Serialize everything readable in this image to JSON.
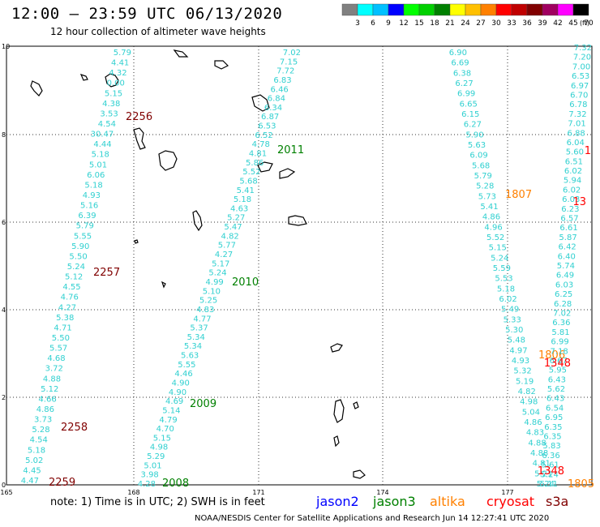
{
  "header": {
    "title": "12:00 – 23:59 UTC 06/13/2020",
    "subtitle": "12 hour collection of altimeter wave heights"
  },
  "legend": {
    "colors": [
      "#808080",
      "#00ffff",
      "#00c0ff",
      "#0000ff",
      "#00ff00",
      "#00d000",
      "#008000",
      "#ffff00",
      "#ffc000",
      "#ff8000",
      "#ff0000",
      "#c00000",
      "#800000",
      "#a00060",
      "#ff00ff",
      "#000000"
    ],
    "labels": [
      "3",
      "6",
      "9",
      "12",
      "15",
      "18",
      "21",
      "24",
      "27",
      "30",
      "33",
      "36",
      "39",
      "42",
      "45",
      "70"
    ],
    "unit": "(ft)"
  },
  "axes": {
    "x_ticks": [
      "165",
      "168",
      "171",
      "174",
      "177"
    ],
    "y_ticks": [
      "0",
      "2",
      "4",
      "6",
      "8",
      "10"
    ]
  },
  "tracks": [
    {
      "id": "track-left",
      "values": [
        "5.79",
        "4.41",
        "4.32",
        "0.00",
        "5.15",
        "4.38",
        "3.53",
        "4.54",
        "30.47",
        "4.44",
        "5.18",
        "5.01",
        "6.06",
        "5.18",
        "4.93",
        "5.16",
        "6.39",
        "5.79",
        "5.55",
        "5.90",
        "5.50",
        "5.24",
        "5.12",
        "4.55",
        "4.76",
        "4.27",
        "5.38",
        "4.71",
        "5.50",
        "5.57",
        "4.68",
        "3.72",
        "4.88",
        "5.12",
        "4.66",
        "4.86",
        "3.73",
        "5.28",
        "4.54",
        "5.18",
        "5.02",
        "4.45",
        "4.47"
      ],
      "time_labels": [
        {
          "text": "2256"
        },
        {
          "text": "2257"
        },
        {
          "text": "2258"
        },
        {
          "text": "2259"
        }
      ]
    },
    {
      "id": "track-center",
      "values": [
        "7.02",
        "7.15",
        "7.72",
        "6.83",
        "6.46",
        "6.84",
        "6.34",
        "6.87",
        "6.53",
        "6.52",
        "4.78",
        "4.81",
        "5.86",
        "5.52",
        "5.68",
        "5.41",
        "5.18",
        "4.63",
        "5.27",
        "5.47",
        "4.82",
        "5.77",
        "4.27",
        "5.17",
        "5.24",
        "4.99",
        "5.10",
        "5.25",
        "4.83",
        "4.77",
        "5.37",
        "5.34",
        "5.34",
        "5.63",
        "5.55",
        "4.46",
        "4.90",
        "4.90",
        "4.69",
        "5.14",
        "4.79",
        "4.70",
        "5.15",
        "4.98",
        "5.29",
        "5.01",
        "3.98",
        "4.28"
      ],
      "time_labels": [
        {
          "text": "2011"
        },
        {
          "text": "2010"
        },
        {
          "text": "2009"
        },
        {
          "text": "2008"
        }
      ]
    },
    {
      "id": "track-right1",
      "values": [
        "6.90",
        "6.69",
        "6.38",
        "6.27",
        "6.99",
        "6.65",
        "6.15",
        "6.27",
        "5.90",
        "5.63",
        "6.09",
        "5.68",
        "5.79",
        "5.28",
        "5.73",
        "5.41",
        "4.86",
        "4.96",
        "5.52",
        "5.15",
        "5.24",
        "5.59",
        "5.53",
        "5.18",
        "6.02",
        "5.49",
        "5.33",
        "5.30",
        "5.48",
        "4.97",
        "4.93",
        "5.32",
        "5.19",
        "4.82",
        "4.98",
        "5.04",
        "4.86",
        "4.83",
        "4.88",
        "4.88",
        "4.81",
        "5.21",
        "5.24"
      ],
      "time_labels": [
        {
          "text": "1807"
        },
        {
          "text": "1806"
        },
        {
          "text": "1805"
        }
      ]
    },
    {
      "id": "track-right2",
      "values": [
        "7.32",
        "7.20",
        "7.00",
        "6.53",
        "6.97",
        "6.70",
        "6.78",
        "7.32",
        "7.01",
        "6.88",
        "6.04",
        "5.60",
        "6.51",
        "6.02",
        "5.94",
        "6.02",
        "6.03",
        "6.23",
        "6.57",
        "6.61",
        "5.87",
        "6.42",
        "6.40",
        "5.74",
        "6.49",
        "6.03",
        "6.25",
        "6.28",
        "7.02",
        "6.36",
        "5.81",
        "6.99",
        "7.18",
        "6.67",
        "5.95",
        "6.43",
        "5.62",
        "6.43",
        "6.54",
        "6.95",
        "6.35",
        "6.35",
        "5.83",
        "6.36",
        "5.61",
        "5.24",
        "5.11"
      ],
      "time_labels": [
        {
          "text": "1"
        },
        {
          "text": "13"
        },
        {
          "text": "1348"
        },
        {
          "text": "1348"
        }
      ]
    }
  ],
  "footer": {
    "note": "note:  1) Time is in UTC;  2) SWH is in feet",
    "satellites": [
      {
        "name": "jason2",
        "color": "#0000ff"
      },
      {
        "name": "jason3",
        "color": "#008000"
      },
      {
        "name": "altika",
        "color": "#ff8000"
      },
      {
        "name": "cryosat",
        "color": "#ff0000"
      },
      {
        "name": "s3a",
        "color": "#800000"
      }
    ],
    "credit": "NOAA/NESDIS Center for Satellite Applications and Research    Jun 14 12:27:41 UTC 2020"
  }
}
